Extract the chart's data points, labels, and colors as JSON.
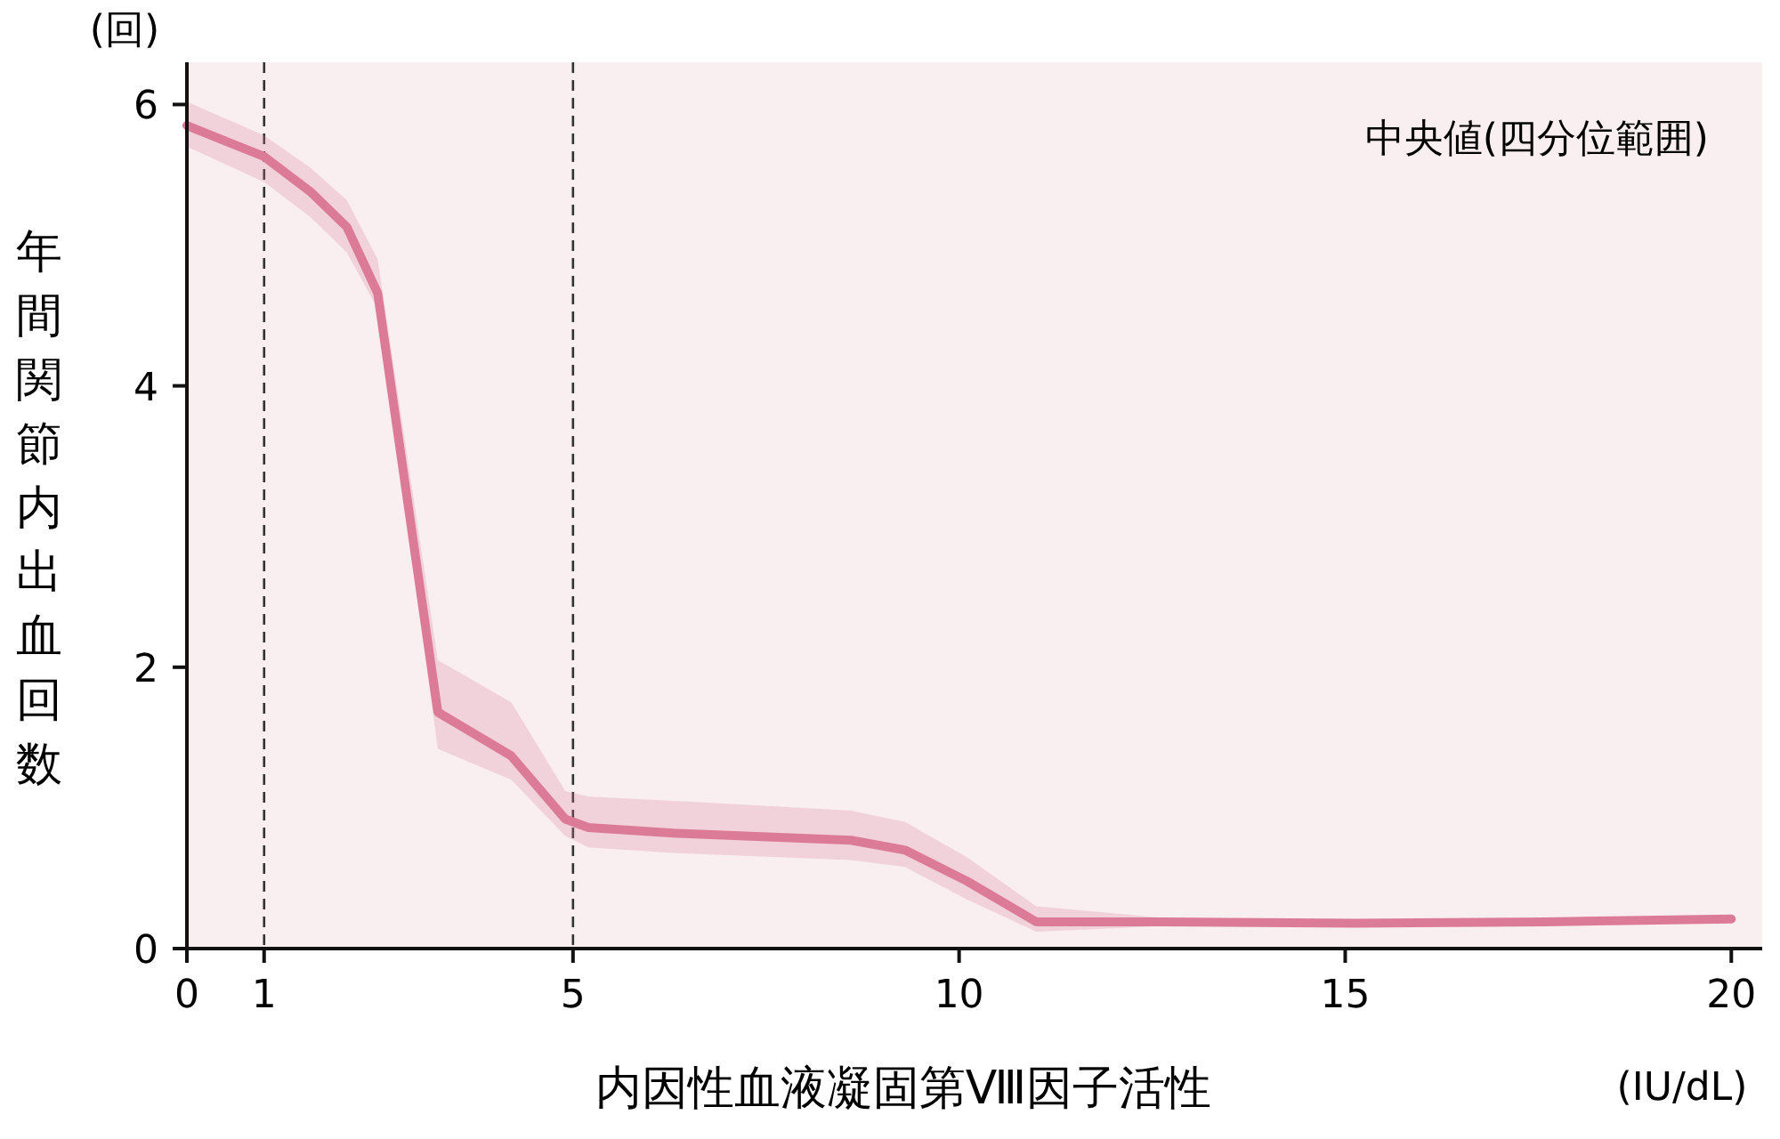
{
  "chart_data": {
    "type": "line",
    "xlabel": "内因性血液凝固第Ⅷ因子活性",
    "ylabel": "年間関節内出血回数",
    "annotations": [
      "(回)",
      "(IU/dL)",
      "中央値(四分位範囲)"
    ],
    "xlim": [
      0,
      20.4
    ],
    "ylim": [
      0,
      6.3
    ],
    "xticks": [
      0,
      1,
      5,
      10,
      15,
      20
    ],
    "yticks": [
      0,
      2,
      4,
      6
    ],
    "grid": false,
    "marker": "none",
    "line_style": "solid",
    "ref_lines": [
      {
        "axis": "x",
        "value": 1,
        "color": "#333333",
        "line_style": "dashed"
      },
      {
        "axis": "x",
        "value": 5,
        "color": "#333333",
        "line_style": "dashed"
      }
    ],
    "series": [
      {
        "color": "#dc7b97",
        "x": [
          0,
          1.0,
          1.6,
          2.07,
          2.47,
          3.25,
          4.2,
          4.9,
          5.2,
          6.3,
          8.6,
          9.3,
          10.1,
          11.0,
          12.6,
          15.1,
          17.6,
          20
        ],
        "values": [
          5.85,
          5.63,
          5.38,
          5.13,
          4.66,
          1.68,
          1.37,
          0.92,
          0.86,
          0.82,
          0.77,
          0.7,
          0.48,
          0.19,
          0.19,
          0.18,
          0.19,
          0.21
        ],
        "lower": [
          5.7,
          5.45,
          5.2,
          4.95,
          4.55,
          1.42,
          1.2,
          0.8,
          0.72,
          0.68,
          0.63,
          0.58,
          0.35,
          0.12,
          0.16,
          0.16,
          0.17,
          0.19
        ],
        "upper": [
          6.02,
          5.78,
          5.55,
          5.32,
          4.9,
          2.05,
          1.75,
          1.12,
          1.08,
          1.05,
          0.98,
          0.9,
          0.65,
          0.3,
          0.22,
          0.2,
          0.21,
          0.23
        ]
      }
    ]
  }
}
